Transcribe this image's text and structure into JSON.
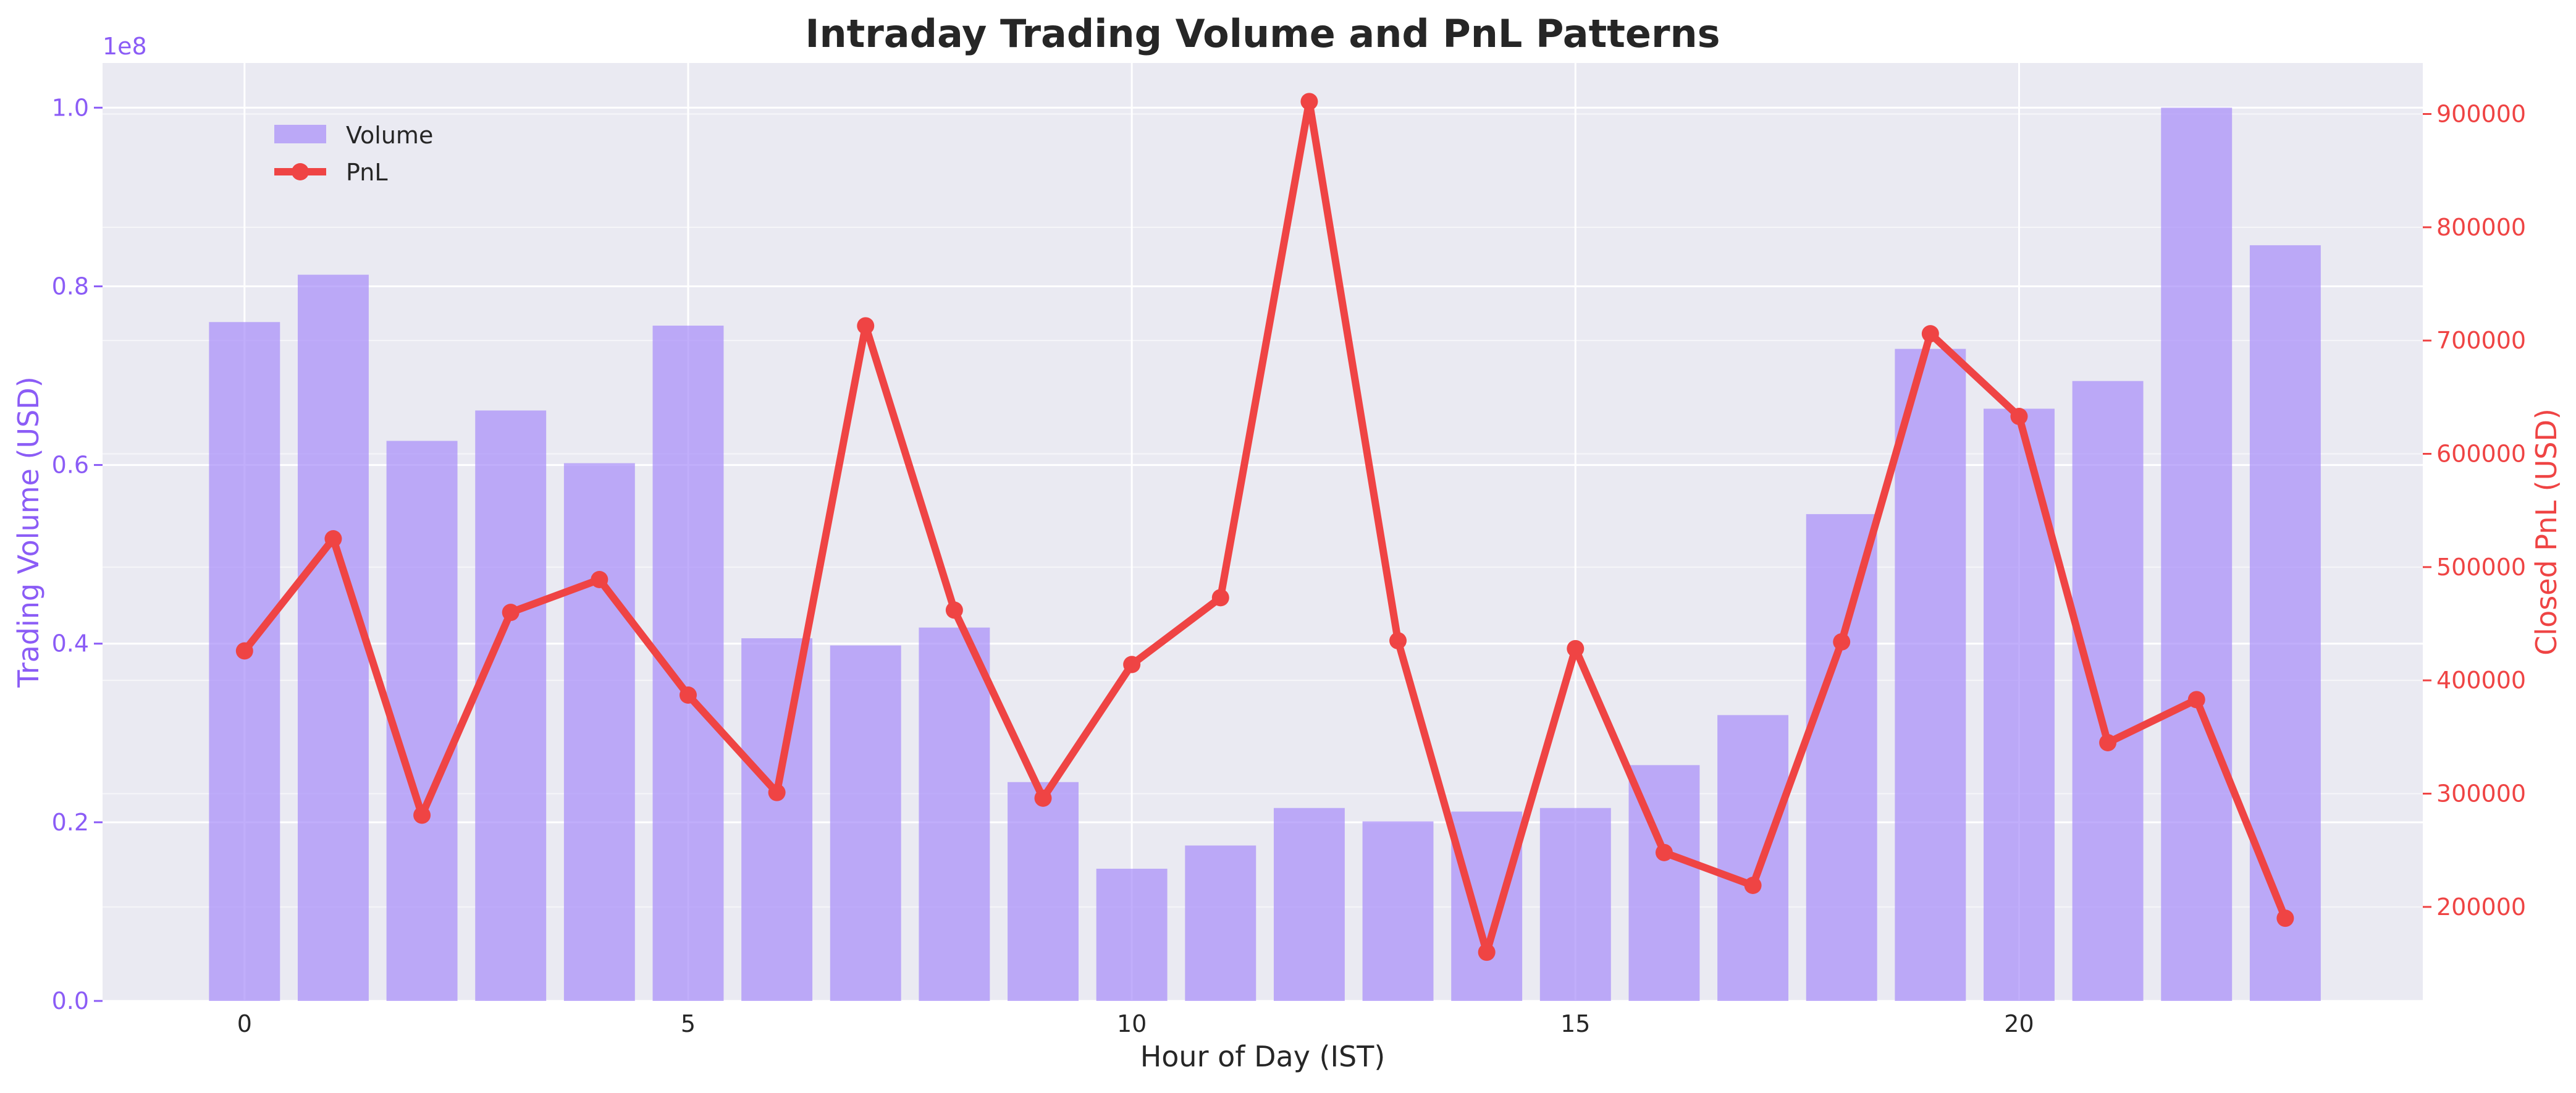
{
  "chart_data": {
    "type": "bar",
    "title": "Intraday Trading Volume and PnL Patterns",
    "xlabel": "Hour of Day (IST)",
    "ylabel_left": "Trading Volume (USD)",
    "ylabel_right": "Closed PnL (USD)",
    "y_left_exponent": "1e8",
    "x": [
      0,
      1,
      2,
      3,
      4,
      5,
      6,
      7,
      8,
      9,
      10,
      11,
      12,
      13,
      14,
      15,
      16,
      17,
      18,
      19,
      20,
      21,
      22,
      23
    ],
    "x_ticks": [
      0,
      5,
      10,
      15,
      20
    ],
    "x_tick_labels": [
      "0",
      "5",
      "10",
      "15",
      "20"
    ],
    "xlim": [
      -1.6,
      24.55
    ],
    "y_left_ticks": [
      0.0,
      0.2,
      0.4,
      0.6,
      0.8,
      1.0
    ],
    "y_left_tick_labels": [
      "0.0",
      "0.2",
      "0.4",
      "0.6",
      "0.8",
      "1.0"
    ],
    "y_left_lim": [
      0,
      1.05
    ],
    "y_right_ticks": [
      200000,
      300000,
      400000,
      500000,
      600000,
      700000,
      800000,
      900000
    ],
    "y_right_tick_labels": [
      "200000",
      "300000",
      "400000",
      "500000",
      "600000",
      "700000",
      "800000",
      "900000"
    ],
    "y_right_lim": [
      117000,
      945000
    ],
    "grid": true,
    "legend_position": "top-left",
    "series": [
      {
        "name": "Volume",
        "type": "bar",
        "axis": "left",
        "color": "#a78bfa",
        "values": [
          0.76,
          0.813,
          0.627,
          0.661,
          0.602,
          0.756,
          0.406,
          0.398,
          0.418,
          0.245,
          0.148,
          0.174,
          0.216,
          0.201,
          0.212,
          0.216,
          0.264,
          0.32,
          0.545,
          0.73,
          0.663,
          0.694,
          1.0,
          0.846
        ]
      },
      {
        "name": "PnL",
        "type": "line",
        "axis": "right",
        "color": "#ef4444",
        "values": [
          426000,
          525000,
          281000,
          460000,
          489000,
          387000,
          301000,
          713000,
          462000,
          296000,
          414000,
          473000,
          911000,
          435000,
          160000,
          428000,
          248000,
          219000,
          434000,
          706000,
          633000,
          345000,
          383000,
          190000
        ]
      }
    ]
  },
  "colors": {
    "volume": "#a78bfa",
    "volume_axis": "#8b5cf6",
    "pnl": "#ef4444",
    "plot_background": "#eaeaf2",
    "grid": "#ffffff"
  }
}
